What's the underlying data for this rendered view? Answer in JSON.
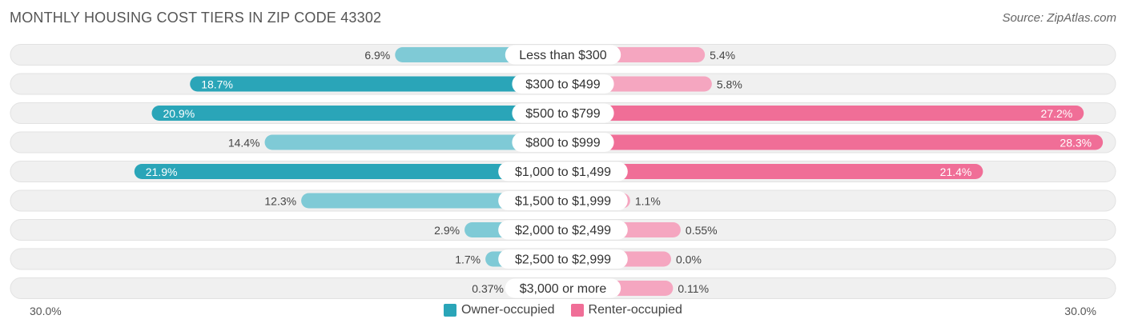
{
  "title": "MONTHLY HOUSING COST TIERS IN ZIP CODE 43302",
  "source": "Source: ZipAtlas.com",
  "axis": {
    "left_label": "30.0%",
    "right_label": "30.0%"
  },
  "colors": {
    "owner_dark": "#2aa5b8",
    "owner_light": "#7fcad6",
    "renter_dark": "#f06e97",
    "renter_light": "#f5a6c0",
    "row_bg": "#f0f0f0"
  },
  "chart_data": {
    "type": "bar",
    "orientation": "diverging-horizontal",
    "categories": [
      "Less than $300",
      "$300 to $499",
      "$500 to $799",
      "$800 to $999",
      "$1,000 to $1,499",
      "$1,500 to $1,999",
      "$2,000 to $2,499",
      "$2,500 to $2,999",
      "$3,000 or more"
    ],
    "series": [
      {
        "name": "Owner-occupied",
        "values": [
          6.9,
          18.7,
          20.9,
          14.4,
          21.9,
          12.3,
          2.9,
          1.7,
          0.37
        ],
        "labels": [
          "6.9%",
          "18.7%",
          "20.9%",
          "14.4%",
          "21.9%",
          "12.3%",
          "2.9%",
          "1.7%",
          "0.37%"
        ]
      },
      {
        "name": "Renter-occupied",
        "values": [
          5.4,
          5.8,
          27.2,
          28.3,
          21.4,
          1.1,
          0.55,
          0.0,
          0.11
        ],
        "labels": [
          "5.4%",
          "5.8%",
          "27.2%",
          "28.3%",
          "21.4%",
          "1.1%",
          "0.55%",
          "0.0%",
          "0.11%"
        ]
      }
    ],
    "xlim": [
      -30,
      30
    ],
    "legend": "bottom-center"
  }
}
